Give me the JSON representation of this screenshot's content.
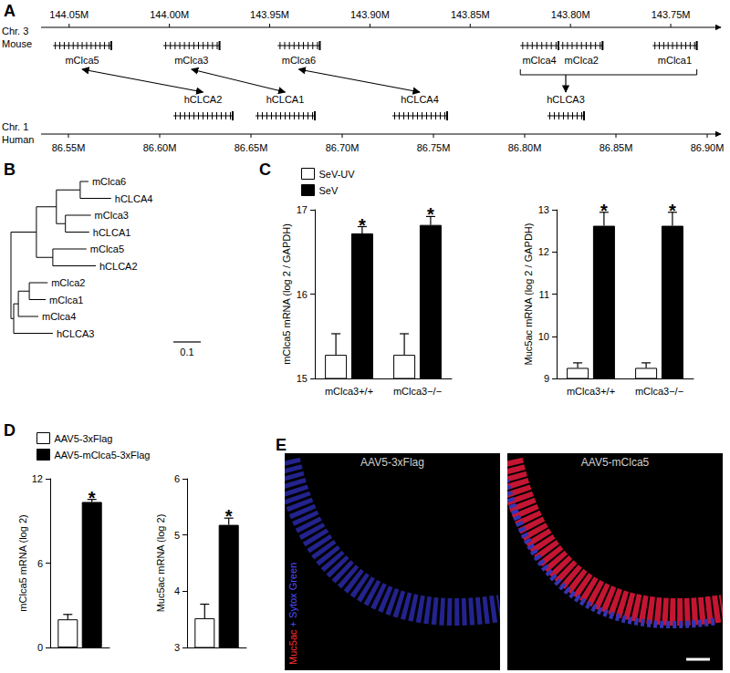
{
  "panel_labels": [
    "A",
    "B",
    "C",
    "D",
    "E"
  ],
  "genome_map": {
    "mouse": {
      "chromosome": "Chr. 3",
      "species": "Mouse",
      "xlim": [
        144.064,
        143.725
      ],
      "xticks": [
        {
          "value": 144.05,
          "label": "144.05M"
        },
        {
          "value": 144.0,
          "label": "144.00M"
        },
        {
          "value": 143.95,
          "label": "143.95M"
        },
        {
          "value": 143.9,
          "label": "143.90M"
        },
        {
          "value": 143.85,
          "label": "143.85M"
        },
        {
          "value": 143.8,
          "label": "143.80M"
        },
        {
          "value": 143.75,
          "label": "143.75M"
        }
      ],
      "genes": [
        {
          "name": "mClca5",
          "start": 144.058,
          "end": 144.029
        },
        {
          "name": "mClca3",
          "start": 144.003,
          "end": 143.975
        },
        {
          "name": "mClca6",
          "start": 143.946,
          "end": 143.925
        },
        {
          "name": "mClca4",
          "start": 143.825,
          "end": 143.806
        },
        {
          "name": "mClca2",
          "start": 143.805,
          "end": 143.784
        },
        {
          "name": "mClca1",
          "start": 143.759,
          "end": 143.737
        }
      ]
    },
    "human": {
      "chromosome": "Chr. 1",
      "species": "Human",
      "xlim": [
        86.535,
        86.9075
      ],
      "xticks": [
        {
          "value": 86.55,
          "label": "86.55M"
        },
        {
          "value": 86.6,
          "label": "86.60M"
        },
        {
          "value": 86.65,
          "label": "86.65M"
        },
        {
          "value": 86.7,
          "label": "86.70M"
        },
        {
          "value": 86.75,
          "label": "86.75M"
        },
        {
          "value": 86.8,
          "label": "86.80M"
        },
        {
          "value": 86.85,
          "label": "86.85M"
        },
        {
          "value": 86.9,
          "label": "86.90M"
        }
      ],
      "genes": [
        {
          "name": "hCLCA2",
          "start": 86.6075,
          "end": 86.64
        },
        {
          "name": "hCLCA1",
          "start": 86.6525,
          "end": 86.685
        },
        {
          "name": "hCLCA4",
          "start": 86.7275,
          "end": 86.7575
        },
        {
          "name": "hCLCA3",
          "start": 86.8125,
          "end": 86.8325
        }
      ]
    },
    "orthologs": [
      {
        "mouse": [
          "mClca5"
        ],
        "human": "hCLCA2",
        "direction": "both"
      },
      {
        "mouse": [
          "mClca3"
        ],
        "human": "hCLCA1",
        "direction": "both"
      },
      {
        "mouse": [
          "mClca6"
        ],
        "human": "hCLCA4",
        "direction": "both"
      },
      {
        "mouse": [
          "mClca4",
          "mClca2",
          "mClca1"
        ],
        "human": "hCLCA3",
        "direction": "to_human"
      }
    ]
  },
  "tree": {
    "scale_bar": 0.1,
    "root": {
      "children": [
        {
          "length": 0.093,
          "children": [
            {
              "length": 0.073,
              "children": [
                {
                  "length": 0.087,
                  "children": [
                    {
                      "name": "mClca6",
                      "length": 0.03
                    },
                    {
                      "name": "hCLCA4",
                      "length": 0.113
                    }
                  ]
                },
                {
                  "length": 0.033,
                  "children": [
                    {
                      "name": "mClca3",
                      "length": 0.093
                    },
                    {
                      "name": "hCLCA1",
                      "length": 0.087
                    }
                  ]
                }
              ]
            },
            {
              "length": 0.06,
              "children": [
                {
                  "name": "mClca5",
                  "length": 0.123
                },
                {
                  "name": "hCLCA2",
                  "length": 0.157
                }
              ]
            }
          ]
        },
        {
          "length": 0.01,
          "children": [
            {
              "length": 0.017,
              "children": [
                {
                  "length": 0.04,
                  "children": [
                    {
                      "name": "mClca2",
                      "length": 0.067
                    },
                    {
                      "name": "mClca1",
                      "length": 0.06
                    }
                  ]
                },
                {
                  "name": "mClca4",
                  "length": 0.073
                }
              ]
            },
            {
              "name": "hCLCA3",
              "length": 0.143
            }
          ]
        }
      ]
    }
  },
  "chart_data": [
    {
      "type": "bar",
      "ylabel": "mClca5 mRNA (log 2 / GAPDH)",
      "categories": [
        "mClca3+/+",
        "mClca3−/−"
      ],
      "series": [
        {
          "name": "SeV-UV",
          "color": "#ffffff",
          "values": [
            15.28,
            15.28
          ],
          "errors": [
            0.25,
            0.25
          ]
        },
        {
          "name": "SeV",
          "color": "#000000",
          "values": [
            16.72,
            16.82
          ],
          "errors": [
            0.08,
            0.1
          ],
          "annotations": [
            "*",
            "*"
          ]
        }
      ],
      "ylim": [
        15,
        17
      ],
      "yticks": [
        15,
        16,
        17
      ],
      "legend": "upper left"
    },
    {
      "type": "bar",
      "ylabel": "Muc5ac mRNA (log 2 / GAPDH)",
      "categories": [
        "mClca3+/+",
        "mClca3−/−"
      ],
      "series": [
        {
          "name": "SeV-UV",
          "color": "#ffffff",
          "values": [
            9.25,
            9.25
          ],
          "errors": [
            0.12,
            0.12
          ]
        },
        {
          "name": "SeV",
          "color": "#000000",
          "values": [
            12.62,
            12.62
          ],
          "errors": [
            0.32,
            0.32
          ],
          "annotations": [
            "*",
            "*"
          ]
        }
      ],
      "ylim": [
        9,
        13
      ],
      "yticks": [
        9,
        10,
        11,
        12,
        13
      ]
    },
    {
      "type": "bar",
      "ylabel": "mClca5 mRNA (log 2)",
      "categories": [
        null
      ],
      "series": [
        {
          "name": "AAV5-3xFlag",
          "color": "#ffffff",
          "values": [
            2.0
          ],
          "errors": [
            0.35
          ]
        },
        {
          "name": "AAV5-mClca5-3xFlag",
          "color": "#000000",
          "values": [
            10.35
          ],
          "errors": [
            0.18
          ],
          "annotations": [
            "*"
          ]
        }
      ],
      "ylim": [
        0,
        12
      ],
      "yticks": [
        0,
        6,
        12
      ],
      "legend": "upper left",
      "tick_labels": "y"
    },
    {
      "type": "bar",
      "ylabel": "Muc5ac mRNA (log 2)",
      "categories": [
        null
      ],
      "series": [
        {
          "name": "AAV5-3xFlag",
          "color": "#ffffff",
          "values": [
            3.52
          ],
          "errors": [
            0.25
          ]
        },
        {
          "name": "AAV5-mClca5-3xFlag",
          "color": "#000000",
          "values": [
            5.18
          ],
          "errors": [
            0.12
          ],
          "annotations": [
            "*"
          ]
        }
      ],
      "ylim": [
        3,
        6
      ],
      "yticks": [
        3,
        4,
        5,
        6
      ],
      "tick_labels": "y"
    }
  ],
  "micrographs": {
    "titles": [
      "AAV5-3xFlag",
      "AAV5-mClca5"
    ],
    "stain_label": [
      {
        "text": "Muc5ac",
        "color": "#ff3030"
      },
      {
        "text": " + Sytox Green",
        "color": "#5050ff"
      }
    ]
  }
}
